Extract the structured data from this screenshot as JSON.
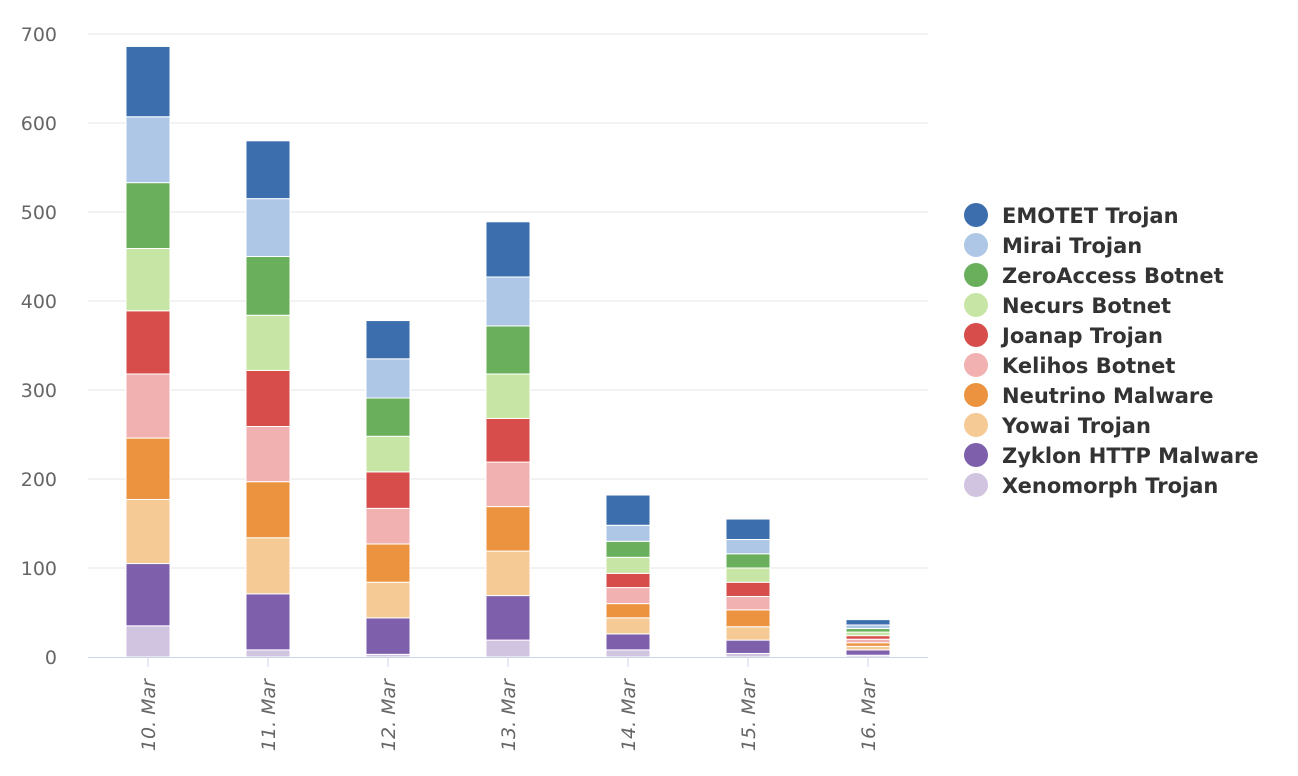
{
  "chart_data": {
    "type": "bar",
    "stacked": true,
    "title": "",
    "xlabel": "",
    "ylabel": "",
    "ylim": [
      0,
      700
    ],
    "yticks": [
      0,
      100,
      200,
      300,
      400,
      500,
      600,
      700
    ],
    "grid": true,
    "legend_position": "right",
    "categories": [
      "10. Mar",
      "11. Mar",
      "12. Mar",
      "13. Mar",
      "14. Mar",
      "15. Mar",
      "16. Mar"
    ],
    "series": [
      {
        "name": "Xenomorph Trojan",
        "color": "#d1c4e0",
        "values": [
          35,
          8,
          3,
          19,
          8,
          4,
          2
        ]
      },
      {
        "name": "Zyklon HTTP Malware",
        "color": "#7e5fab",
        "values": [
          70,
          63,
          41,
          50,
          18,
          15,
          6
        ]
      },
      {
        "name": "Yowai Trojan",
        "color": "#f5ca94",
        "values": [
          72,
          63,
          40,
          50,
          18,
          15,
          4
        ]
      },
      {
        "name": "Neutrino Malware",
        "color": "#ec9340",
        "values": [
          69,
          63,
          43,
          50,
          16,
          19,
          4
        ]
      },
      {
        "name": "Kelihos Botnet",
        "color": "#f1b1b0",
        "values": [
          72,
          62,
          40,
          50,
          18,
          15,
          4
        ]
      },
      {
        "name": "Joanap Trojan",
        "color": "#d64d4b",
        "values": [
          71,
          63,
          41,
          49,
          16,
          16,
          4
        ]
      },
      {
        "name": "Necurs Botnet",
        "color": "#c7e6a6",
        "values": [
          70,
          62,
          40,
          50,
          18,
          16,
          4
        ]
      },
      {
        "name": "ZeroAccess Botnet",
        "color": "#6aaf5b",
        "values": [
          74,
          66,
          43,
          54,
          18,
          16,
          4
        ]
      },
      {
        "name": "Mirai Trojan",
        "color": "#aec7e6",
        "values": [
          74,
          65,
          44,
          55,
          18,
          16,
          4
        ]
      },
      {
        "name": "EMOTET Trojan",
        "color": "#3c6ead",
        "values": [
          79,
          65,
          43,
          62,
          34,
          23,
          6
        ]
      }
    ]
  }
}
